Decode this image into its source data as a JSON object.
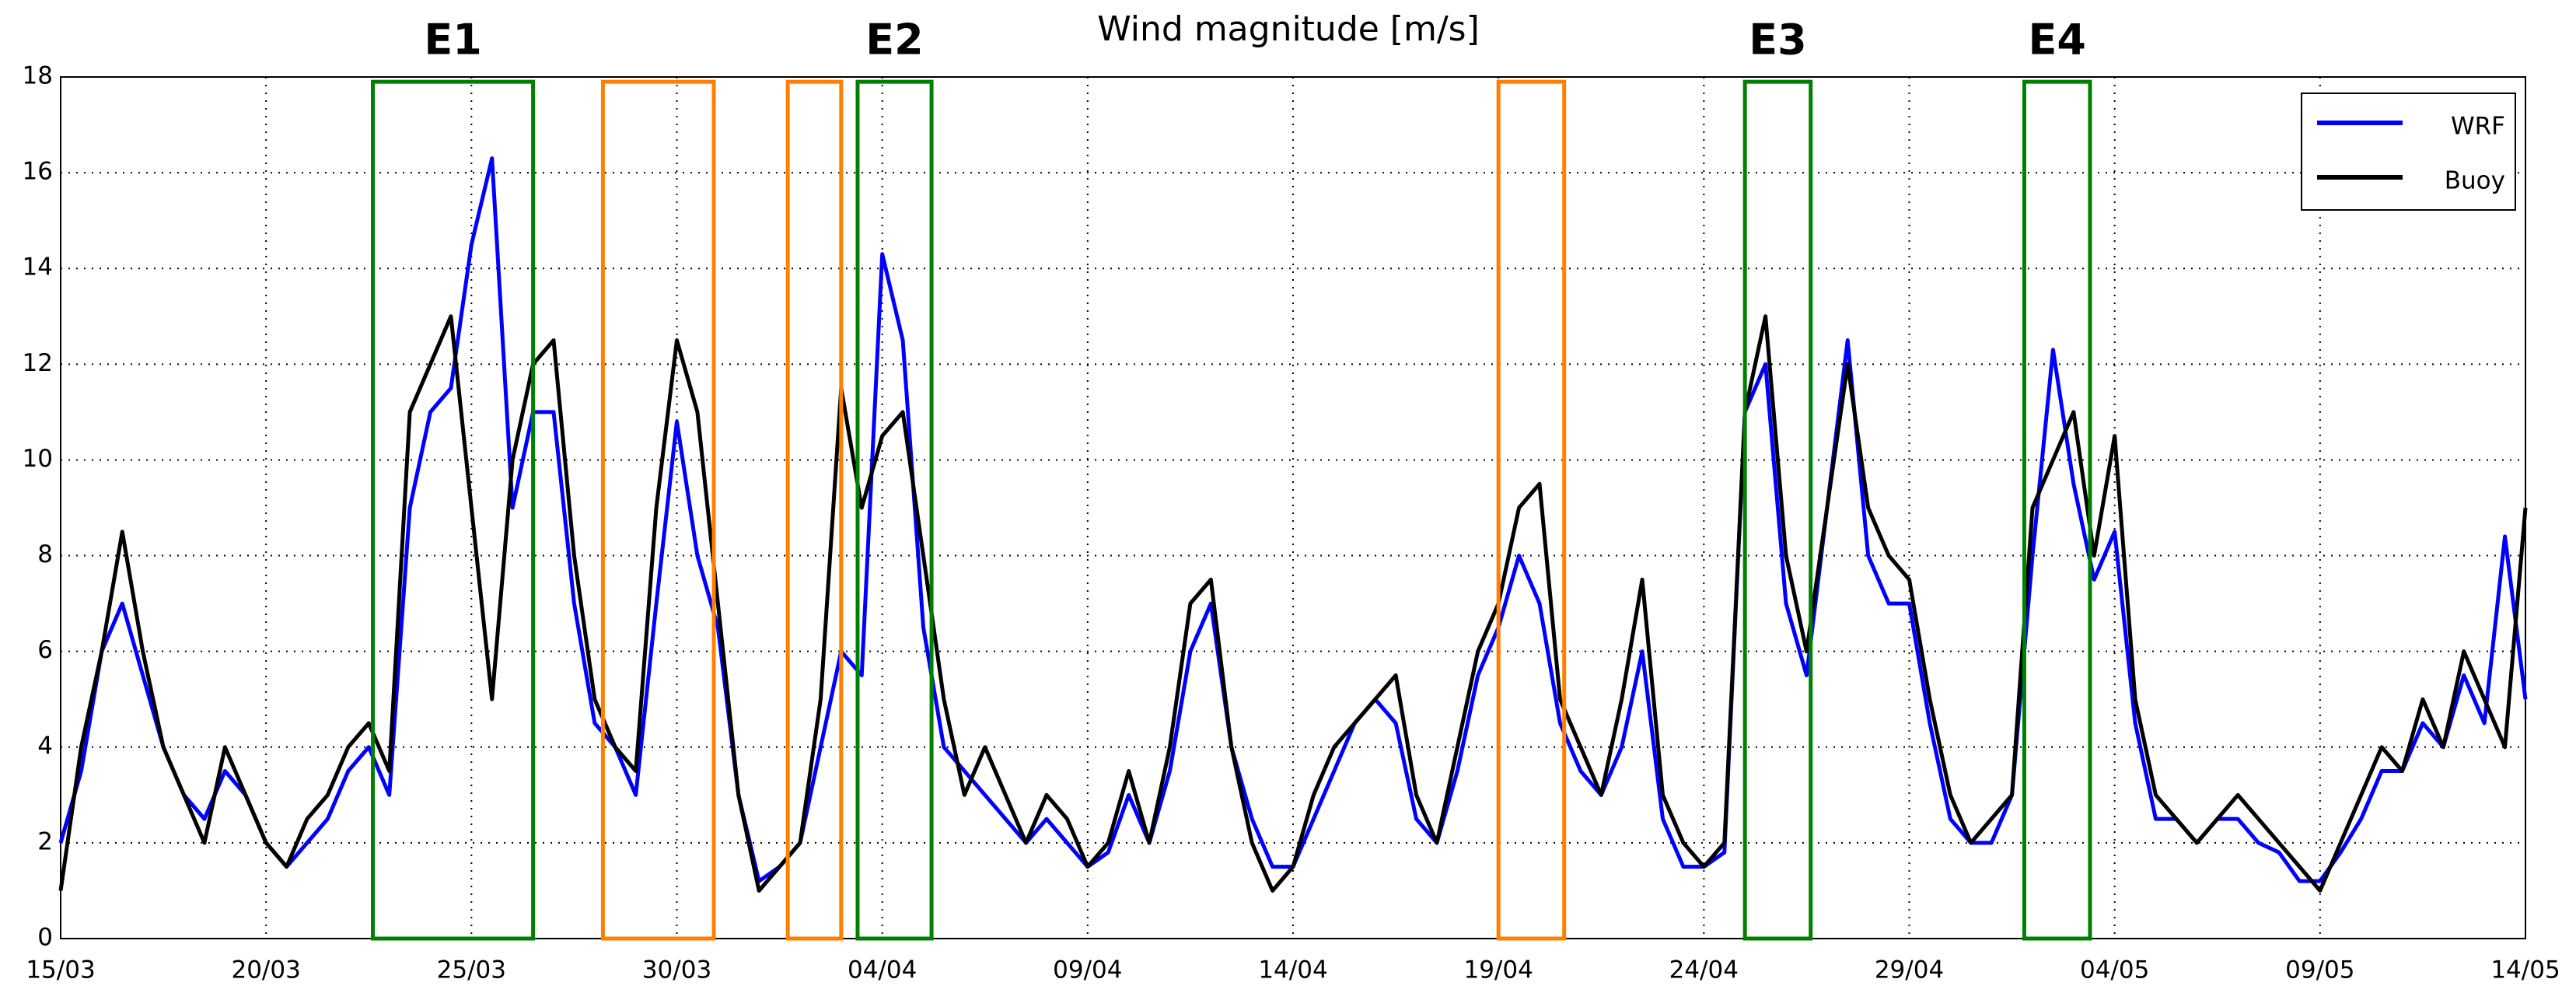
{
  "chart_data": {
    "type": "line",
    "title": "Wind magnitude [m/s]",
    "x": [
      0,
      0.5,
      1,
      1.5,
      2,
      2.5,
      3,
      3.5,
      4,
      4.5,
      5,
      5.5,
      6,
      6.5,
      7,
      7.5,
      8,
      8.5,
      9,
      9.5,
      10,
      10.5,
      11,
      11.5,
      12,
      12.5,
      13,
      13.5,
      14,
      14.5,
      15,
      15.5,
      16,
      16.5,
      17,
      17.5,
      18,
      18.5,
      19,
      19.5,
      20,
      20.5,
      21,
      21.5,
      22,
      22.5,
      23,
      23.5,
      24,
      24.5,
      25,
      25.5,
      26,
      26.5,
      27,
      27.5,
      28,
      28.5,
      29,
      29.5,
      30,
      30.5,
      31,
      31.5,
      32,
      32.5,
      33,
      33.5,
      34,
      34.5,
      35,
      35.5,
      36,
      36.5,
      37,
      37.5,
      38,
      38.5,
      39,
      39.5,
      40,
      40.5,
      41,
      41.5,
      42,
      42.5,
      43,
      43.5,
      44,
      44.5,
      45,
      45.5,
      46,
      46.5,
      47,
      47.5,
      48,
      48.5,
      49,
      49.5,
      50,
      50.5,
      51,
      51.5,
      52,
      52.5,
      53,
      53.5,
      54,
      54.5,
      55,
      55.5,
      56,
      56.5,
      57,
      57.5,
      58,
      58.5,
      59,
      59.5,
      60
    ],
    "series": [
      {
        "name": "WRF",
        "color": "#0000ff",
        "values": [
          2,
          3.5,
          6,
          7,
          5.5,
          4,
          3,
          2.5,
          3.5,
          3,
          2,
          1.5,
          2,
          2.5,
          3.5,
          4,
          3,
          9,
          11,
          11.5,
          14.5,
          16.3,
          9,
          11,
          11,
          7,
          4.5,
          4,
          3,
          7,
          10.8,
          8,
          6.5,
          3,
          1.2,
          1.5,
          2,
          4,
          6,
          5.5,
          14.3,
          12.5,
          6.5,
          4,
          3.5,
          3,
          2.5,
          2,
          2.5,
          2,
          1.5,
          1.8,
          3,
          2,
          3.5,
          6,
          7,
          4,
          2.5,
          1.5,
          1.5,
          2.5,
          3.5,
          4.5,
          5,
          4.5,
          2.5,
          2,
          3.5,
          5.5,
          6.5,
          8,
          7,
          4.5,
          3.5,
          3,
          4,
          6,
          2.5,
          1.5,
          1.5,
          1.8,
          11,
          12,
          7,
          5.5,
          9,
          12.5,
          8,
          7,
          7,
          4.5,
          2.5,
          2,
          2,
          3,
          8,
          12.3,
          9.5,
          7.5,
          8.5,
          4.5,
          2.5,
          2.5,
          2,
          2.5,
          2.5,
          2,
          1.8,
          1.2,
          1.2,
          1.8,
          2.5,
          3.5,
          3.5,
          4.5,
          4,
          5.5,
          4.5,
          8.4,
          5
        ]
      },
      {
        "name": "Buoy",
        "color": "#000000",
        "values": [
          1,
          4,
          6,
          8.5,
          6,
          4,
          3,
          2,
          4,
          3,
          2,
          1.5,
          2.5,
          3,
          4,
          4.5,
          3.5,
          11,
          12,
          13,
          9,
          5,
          10,
          12,
          12.5,
          8,
          5,
          4,
          3.5,
          9,
          12.5,
          11,
          7,
          3,
          1,
          1.5,
          2,
          5,
          11.5,
          9,
          10.5,
          11,
          8,
          5,
          3,
          4,
          3,
          2,
          3,
          2.5,
          1.5,
          2,
          3.5,
          2,
          4,
          7,
          7.5,
          4,
          2,
          1,
          1.5,
          3,
          4,
          4.5,
          5,
          5.5,
          3,
          2,
          4,
          6,
          7,
          9,
          9.5,
          5,
          4,
          3,
          5,
          7.5,
          3,
          2,
          1.5,
          2,
          11,
          13,
          8,
          6,
          9,
          12,
          9,
          8,
          7.5,
          5,
          3,
          2,
          2.5,
          3,
          9,
          10,
          11,
          8,
          10.5,
          5,
          3,
          2.5,
          2,
          2.5,
          3,
          2.5,
          2,
          1.5,
          1,
          2,
          3,
          4,
          3.5,
          5,
          4,
          6,
          5,
          4,
          9
        ]
      }
    ],
    "xlim": [
      0,
      60
    ],
    "ylim": [
      0,
      18
    ],
    "xticks": [
      {
        "value": 0,
        "label": "15/03"
      },
      {
        "value": 5,
        "label": "20/03"
      },
      {
        "value": 10,
        "label": "25/03"
      },
      {
        "value": 15,
        "label": "30/03"
      },
      {
        "value": 20,
        "label": "04/04"
      },
      {
        "value": 25,
        "label": "09/04"
      },
      {
        "value": 30,
        "label": "14/04"
      },
      {
        "value": 35,
        "label": "19/04"
      },
      {
        "value": 40,
        "label": "24/04"
      },
      {
        "value": 45,
        "label": "29/04"
      },
      {
        "value": 50,
        "label": "04/05"
      },
      {
        "value": 55,
        "label": "09/05"
      },
      {
        "value": 60,
        "label": "14/05"
      }
    ],
    "yticks": [
      0,
      2,
      4,
      6,
      8,
      10,
      12,
      14,
      16,
      18
    ],
    "grid": true,
    "legend": "upper right",
    "annotations": [
      {
        "label": "E1",
        "x0": 7.6,
        "x1": 11.5,
        "y1": 17.9,
        "color": "#008000"
      },
      {
        "x0": 13.2,
        "x1": 15.9,
        "y1": 17.9,
        "color": "#ff8000"
      },
      {
        "x0": 17.7,
        "x1": 19.0,
        "y1": 17.9,
        "color": "#ff8000"
      },
      {
        "label": "E2",
        "x0": 19.4,
        "x1": 21.2,
        "y1": 17.9,
        "color": "#008000"
      },
      {
        "x0": 35.0,
        "x1": 36.6,
        "y1": 17.9,
        "color": "#ff8000"
      },
      {
        "label": "E3",
        "x0": 41.0,
        "x1": 42.6,
        "y1": 17.9,
        "color": "#008000"
      },
      {
        "label": "E4",
        "x0": 47.8,
        "x1": 49.4,
        "y1": 17.9,
        "color": "#008000"
      }
    ]
  }
}
